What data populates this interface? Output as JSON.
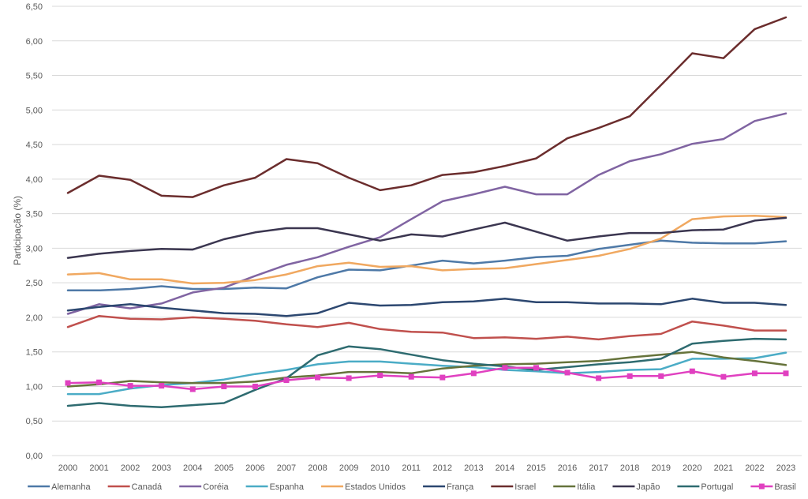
{
  "chart_data": {
    "type": "line",
    "title": "",
    "xlabel": "",
    "ylabel": "Participação (%)",
    "ylim": [
      0,
      6.5
    ],
    "yticks": [
      "0,00",
      "0,50",
      "1,00",
      "1,50",
      "2,00",
      "2,50",
      "3,00",
      "3,50",
      "4,00",
      "4,50",
      "5,00",
      "5,50",
      "6,00",
      "6,50"
    ],
    "ytick_values": [
      0,
      0.5,
      1,
      1.5,
      2,
      2.5,
      3,
      3.5,
      4,
      4.5,
      5,
      5.5,
      6,
      6.5
    ],
    "grid": true,
    "legend_position": "bottom",
    "x": [
      "2000",
      "2001",
      "2002",
      "2003",
      "2004",
      "2005",
      "2006",
      "2007",
      "2008",
      "2009",
      "2010",
      "2011",
      "2012",
      "2013",
      "2014",
      "2015",
      "2016",
      "2017",
      "2018",
      "2019",
      "2020",
      "2021",
      "2022",
      "2023"
    ],
    "series": [
      {
        "name": "Alemanha",
        "color": "#4e79a7",
        "marker": "none",
        "values": [
          2.39,
          2.39,
          2.41,
          2.45,
          2.41,
          2.41,
          2.43,
          2.42,
          2.58,
          2.69,
          2.68,
          2.75,
          2.82,
          2.78,
          2.82,
          2.87,
          2.89,
          2.99,
          3.05,
          3.11,
          3.08,
          3.07,
          3.07,
          3.1
        ]
      },
      {
        "name": "Canadá",
        "color": "#c0504d",
        "marker": "none",
        "values": [
          1.86,
          2.02,
          1.98,
          1.97,
          2.0,
          1.98,
          1.95,
          1.9,
          1.86,
          1.92,
          1.83,
          1.79,
          1.78,
          1.7,
          1.71,
          1.69,
          1.72,
          1.68,
          1.73,
          1.76,
          1.94,
          1.88,
          1.81,
          1.81
        ]
      },
      {
        "name": "Coréia",
        "color": "#8064a2",
        "marker": "none",
        "values": [
          2.05,
          2.19,
          2.13,
          2.2,
          2.36,
          2.43,
          2.6,
          2.76,
          2.87,
          3.02,
          3.16,
          3.42,
          3.68,
          3.78,
          3.89,
          3.78,
          3.78,
          4.06,
          4.26,
          4.36,
          4.51,
          4.58,
          4.84,
          4.95
        ]
      },
      {
        "name": "Espanha",
        "color": "#4bacc6",
        "marker": "none",
        "values": [
          0.89,
          0.89,
          0.97,
          1.02,
          1.05,
          1.1,
          1.18,
          1.24,
          1.32,
          1.36,
          1.36,
          1.33,
          1.3,
          1.28,
          1.24,
          1.22,
          1.19,
          1.21,
          1.24,
          1.25,
          1.4,
          1.4,
          1.41,
          1.49
        ]
      },
      {
        "name": "Estados Unidos",
        "color": "#f0a860",
        "marker": "none",
        "values": [
          2.62,
          2.64,
          2.55,
          2.55,
          2.49,
          2.5,
          2.54,
          2.62,
          2.74,
          2.79,
          2.73,
          2.74,
          2.68,
          2.7,
          2.71,
          2.77,
          2.83,
          2.89,
          2.99,
          3.14,
          3.42,
          3.46,
          3.47,
          3.45
        ]
      },
      {
        "name": "França",
        "color": "#2c4770",
        "marker": "none",
        "values": [
          2.1,
          2.15,
          2.19,
          2.14,
          2.1,
          2.06,
          2.05,
          2.02,
          2.06,
          2.21,
          2.17,
          2.18,
          2.22,
          2.23,
          2.27,
          2.22,
          2.22,
          2.2,
          2.2,
          2.19,
          2.27,
          2.21,
          2.21,
          2.18
        ]
      },
      {
        "name": "Israel",
        "color": "#6b2d2d",
        "marker": "none",
        "values": [
          3.8,
          4.05,
          3.99,
          3.76,
          3.74,
          3.91,
          4.02,
          4.29,
          4.23,
          4.02,
          3.84,
          3.91,
          4.06,
          4.1,
          4.19,
          4.3,
          4.59,
          4.74,
          4.91,
          5.36,
          5.82,
          5.75,
          6.17,
          6.34
        ]
      },
      {
        "name": "Itália",
        "color": "#66733b",
        "marker": "none",
        "values": [
          1.0,
          1.03,
          1.08,
          1.06,
          1.05,
          1.05,
          1.07,
          1.13,
          1.16,
          1.21,
          1.21,
          1.19,
          1.26,
          1.3,
          1.32,
          1.33,
          1.35,
          1.37,
          1.42,
          1.46,
          1.5,
          1.42,
          1.37,
          1.31
        ]
      },
      {
        "name": "Japão",
        "color": "#3b3650",
        "marker": "none",
        "values": [
          2.86,
          2.92,
          2.96,
          2.99,
          2.98,
          3.13,
          3.23,
          3.29,
          3.29,
          3.2,
          3.11,
          3.2,
          3.17,
          3.27,
          3.37,
          3.24,
          3.11,
          3.17,
          3.22,
          3.22,
          3.26,
          3.27,
          3.4,
          3.44
        ]
      },
      {
        "name": "Portugal",
        "color": "#2e6b70",
        "marker": "none",
        "values": [
          0.72,
          0.76,
          0.72,
          0.7,
          0.73,
          0.76,
          0.95,
          1.12,
          1.45,
          1.58,
          1.54,
          1.46,
          1.38,
          1.33,
          1.29,
          1.24,
          1.28,
          1.32,
          1.35,
          1.4,
          1.62,
          1.66,
          1.69,
          1.68
        ]
      },
      {
        "name": "Brasil",
        "color": "#e040c0",
        "marker": "square",
        "values": [
          1.05,
          1.06,
          1.01,
          1.01,
          0.96,
          1.0,
          1.0,
          1.09,
          1.13,
          1.12,
          1.16,
          1.14,
          1.13,
          1.19,
          1.27,
          1.27,
          1.2,
          1.12,
          1.15,
          1.15,
          1.22,
          1.14,
          1.19,
          1.19
        ]
      }
    ]
  }
}
